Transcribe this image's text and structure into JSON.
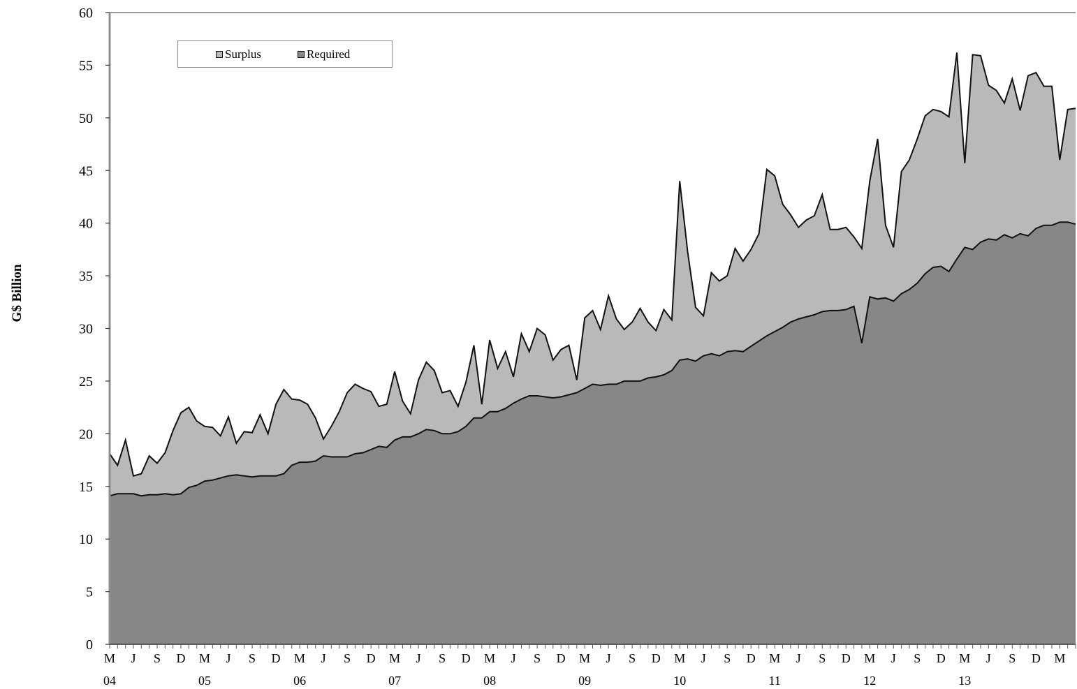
{
  "chart_data": {
    "type": "area",
    "stacked": true,
    "title": "",
    "xlabel": "",
    "ylabel": "G$ Billion",
    "ylim": [
      0,
      60
    ],
    "yticks": [
      0,
      5,
      10,
      15,
      20,
      25,
      30,
      35,
      40,
      45,
      50,
      55,
      60
    ],
    "x_start": "2004-03",
    "x_frequency": "monthly",
    "x_tick_months": [
      "M",
      "J",
      "S",
      "D"
    ],
    "x_year_labels": [
      "04",
      "05",
      "06",
      "07",
      "08",
      "09",
      "10",
      "11",
      "12",
      "13"
    ],
    "legend": {
      "position": "top-left",
      "entries": [
        "Surplus",
        "Required"
      ]
    },
    "grid": false,
    "series": [
      {
        "name": "Required",
        "color": "#878787",
        "values": [
          14.1,
          14.3,
          14.3,
          14.3,
          14.1,
          14.2,
          14.2,
          14.3,
          14.2,
          14.3,
          14.9,
          15.1,
          15.5,
          15.6,
          15.8,
          16.0,
          16.1,
          16.0,
          15.9,
          16.0,
          16.0,
          16.0,
          16.2,
          17.0,
          17.3,
          17.3,
          17.4,
          17.9,
          17.8,
          17.8,
          17.8,
          18.1,
          18.2,
          18.5,
          18.8,
          18.7,
          19.4,
          19.7,
          19.7,
          20.0,
          20.4,
          20.3,
          20.0,
          20.0,
          20.2,
          20.7,
          21.5,
          21.5,
          22.1,
          22.1,
          22.4,
          22.9,
          23.3,
          23.6,
          23.6,
          23.5,
          23.4,
          23.5,
          23.7,
          23.9,
          24.3,
          24.7,
          24.6,
          24.7,
          24.7,
          25.0,
          25.0,
          25.0,
          25.3,
          25.4,
          25.6,
          26.0,
          27.0,
          27.1,
          26.9,
          27.4,
          27.6,
          27.4,
          27.8,
          27.9,
          27.8,
          28.3,
          28.8,
          29.3,
          29.7,
          30.1,
          30.6,
          30.9,
          31.1,
          31.3,
          31.6,
          31.7,
          31.7,
          31.8,
          32.1,
          28.6,
          33.0,
          32.8,
          32.9,
          32.6,
          33.3,
          33.7,
          34.3,
          35.2,
          35.8,
          35.9,
          35.4,
          36.6,
          37.7,
          37.5,
          38.2,
          38.5,
          38.4,
          38.9,
          38.6,
          39.0,
          38.8,
          39.5,
          39.8,
          39.8,
          40.1,
          40.1,
          39.9
        ]
      },
      {
        "name": "Surplus",
        "color": "#b9b9b9",
        "values": [
          4.0,
          2.7,
          5.1,
          1.7,
          2.1,
          3.7,
          3.0,
          3.9,
          6.1,
          7.7,
          7.6,
          6.1,
          5.2,
          5.0,
          4.0,
          5.6,
          3.0,
          4.2,
          4.2,
          5.8,
          4.0,
          6.8,
          8.0,
          6.3,
          5.9,
          5.5,
          4.1,
          1.6,
          2.9,
          4.3,
          6.1,
          6.6,
          6.1,
          5.5,
          3.8,
          4.1,
          6.5,
          3.4,
          2.2,
          5.1,
          6.4,
          5.7,
          3.9,
          4.1,
          2.4,
          4.2,
          6.9,
          1.3,
          6.8,
          4.1,
          5.4,
          2.5,
          6.2,
          4.2,
          6.4,
          5.9,
          3.6,
          4.5,
          4.7,
          1.2,
          6.7,
          7.0,
          5.3,
          8.4,
          6.2,
          4.9,
          5.6,
          6.9,
          5.3,
          4.4,
          6.2,
          4.8,
          17.0,
          10.2,
          5.1,
          3.8,
          7.7,
          7.1,
          7.2,
          9.7,
          8.6,
          9.2,
          10.2,
          15.8,
          14.8,
          11.7,
          10.2,
          8.7,
          9.2,
          9.4,
          11.1,
          7.7,
          7.7,
          7.8,
          6.6,
          9.0,
          11.0,
          15.2,
          6.9,
          5.1,
          11.6,
          12.3,
          13.7,
          15.0,
          15.0,
          14.7,
          14.7,
          19.6,
          8.0,
          18.5,
          17.7,
          14.6,
          14.2,
          12.5,
          15.1,
          11.7,
          15.2,
          14.8,
          13.2,
          13.2,
          5.9,
          10.7,
          11.0
        ]
      }
    ]
  }
}
